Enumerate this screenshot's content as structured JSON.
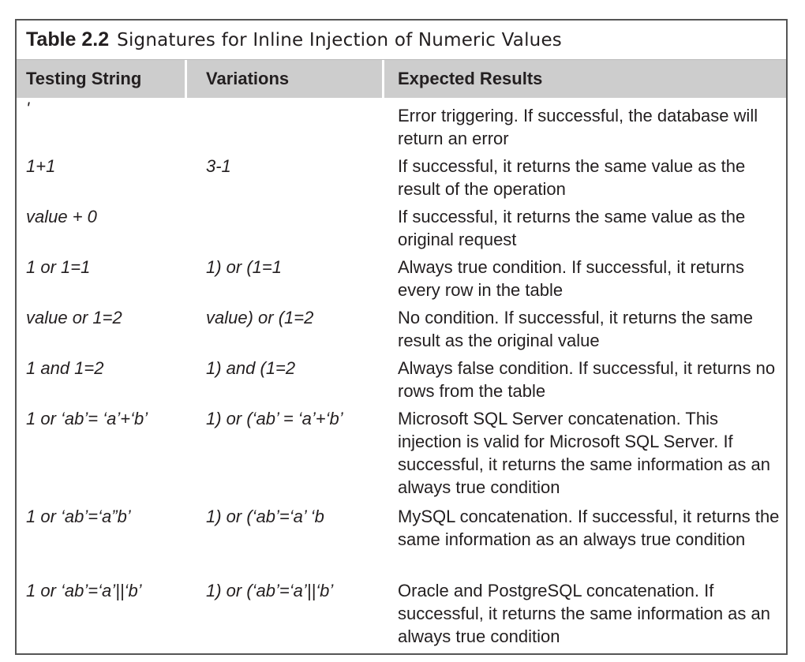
{
  "table": {
    "number": "Table 2.2",
    "title": "Signatures for Inline Injection of Numeric Values",
    "headers": [
      "Testing String",
      "Variations",
      "Expected Results"
    ],
    "rows": [
      {
        "testing": "'",
        "variation": "",
        "result": "Error triggering. If successful, the database will return an error"
      },
      {
        "testing": "1+1",
        "variation": "3-1",
        "result": "If successful, it returns the same value as the result of the operation"
      },
      {
        "testing": "value + 0",
        "variation": "",
        "result": "If successful, it returns the same value as the original request"
      },
      {
        "testing": "1 or 1=1",
        "variation": "1) or (1=1",
        "result": "Always true condition. If successful, it returns every row in the table"
      },
      {
        "testing": "value or 1=2",
        "variation": "value) or (1=2",
        "result": "No condition. If successful, it returns the same result as the original value"
      },
      {
        "testing": "1 and 1=2",
        "variation": "1) and (1=2",
        "result": "Always false condition. If successful, it returns no rows from the table"
      },
      {
        "testing": "1 or ‘ab’= ‘a’+‘b’",
        "variation": "1) or (‘ab’ = ‘a’+‘b’",
        "result": "Microsoft SQL Server concatenation. This injection is valid for Microsoft SQL Server. If successful, it returns the same information as an always true condition"
      },
      {
        "testing": "1 or ‘ab’=‘a”b’",
        "variation": "1) or (‘ab’=‘a’ ‘b",
        "result": "MySQL concatenation. If successful, it returns the same information as an always true condition"
      },
      {
        "testing": "1 or ‘ab’=‘a’||‘b’",
        "variation": "1) or (‘ab’=‘a’||‘b’",
        "result": "Oracle and PostgreSQL concatenation. If successful, it returns the same information as an always true condition"
      }
    ]
  },
  "colors": {
    "header_bg": "#cdcdcd",
    "border": "#555555",
    "text": "#231f20"
  }
}
